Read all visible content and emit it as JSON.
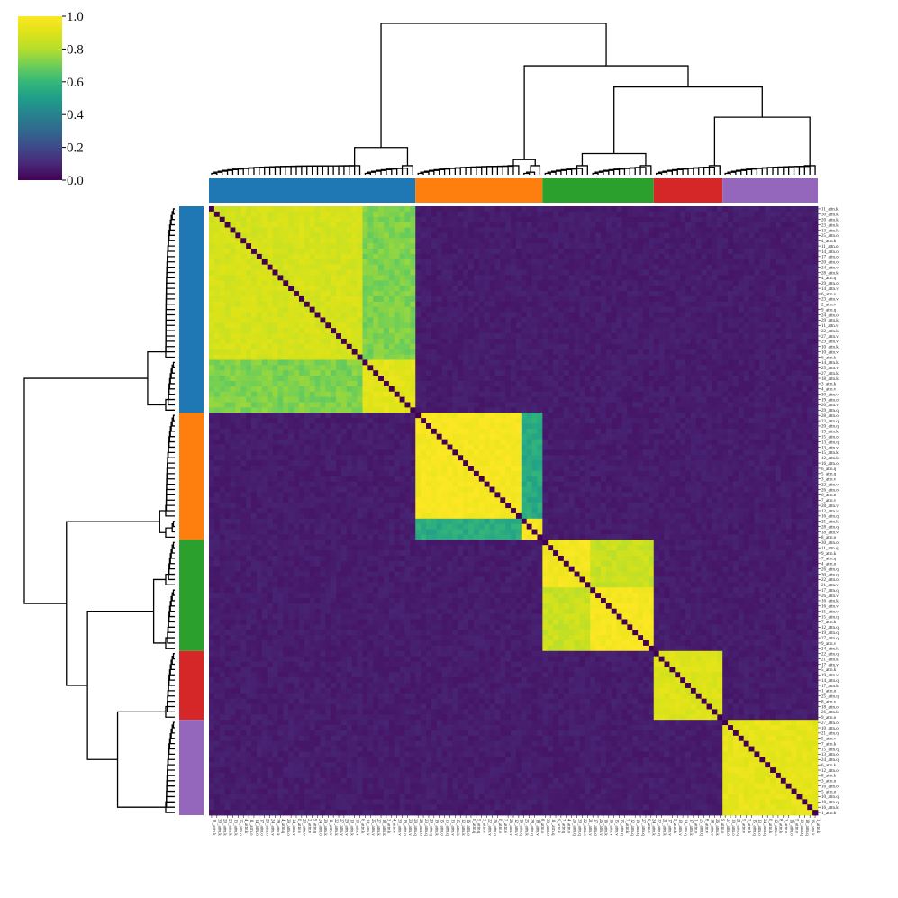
{
  "chart_data": {
    "type": "heatmap",
    "title": "",
    "xlabel": "",
    "ylabel": "",
    "colormap": "viridis",
    "clim": [
      0.0,
      1.0
    ],
    "colorbar": {
      "ticks": [
        "0.0",
        "0.2",
        "0.4",
        "0.6",
        "0.8",
        "1.0"
      ],
      "placement": "top-left"
    },
    "dendrograms": [
      "top",
      "left"
    ],
    "cluster_colors": [
      "#1f77b4",
      "#ff7f0e",
      "#2ca02c",
      "#d62728",
      "#9467bd"
    ],
    "groups": [
      {
        "cluster": 1,
        "count": 29,
        "block_value": 0.88
      },
      {
        "cluster": 1,
        "count": 10,
        "block_value": 0.92
      },
      {
        "cluster": 2,
        "count": 20,
        "block_value": 0.98
      },
      {
        "cluster": 2,
        "count": 4,
        "block_value": 0.98
      },
      {
        "cluster": 3,
        "count": 9,
        "block_value": 0.97
      },
      {
        "cluster": 3,
        "count": 12,
        "block_value": 0.98
      },
      {
        "cluster": 4,
        "count": 13,
        "block_value": 0.9
      },
      {
        "cluster": 5,
        "count": 18,
        "block_value": 0.93
      }
    ],
    "off_block_value": 0.05,
    "row_labels": [
      "11_attn.k",
      "30_attn.k",
      "20_attn.k",
      "23_attn.k",
      "13_attn.k",
      "25_attn.o",
      "4_attn.k",
      "11_attn.o",
      "14_attn.o",
      "17_attn.o",
      "20_attn.o",
      "24_attn.v",
      "28_attn.k",
      "4_attn.q",
      "29_attn.o",
      "14_attn.v",
      "6_attn.v",
      "23_attn.v",
      "2_attn.v",
      "9_attn.q",
      "24_attn.o",
      "29_attn.k",
      "11_attn.v",
      "22_attn.k",
      "27_attn.v",
      "29_attn.v",
      "10_attn.k",
      "10_attn.v",
      "6_attn.k",
      "14_attn.k",
      "25_attn.v",
      "27_attn.k",
      "18_attn.k",
      "3_attn.k",
      "4_attn.v",
      "30_attn.v",
      "19_attn.o",
      "20_attn.v",
      "29_attn.q",
      "28_attn.o",
      "23_attn.q",
      "20_attn.q",
      "19_attn.k",
      "15_attn.o",
      "13_attn.q",
      "13_attn.v",
      "15_attn.k",
      "12_attn.k",
      "16_attn.o",
      "6_attn.q",
      "5_attn.q",
      "3_attn.v",
      "22_attn.v",
      "26_attn.o",
      "6_attn.o",
      "7_attn.v",
      "28_attn.v",
      "12_attn.v",
      "16_attn.q",
      "25_attn.k",
      "28_attn.q",
      "18_attn.v",
      "8_attn.o",
      "30_attn.o",
      "11_attn.q",
      "9_attn.k",
      "7_attn.q",
      "4_attn.o",
      "26_attn.q",
      "30_attn.q",
      "22_attn.o",
      "21_attn.v",
      "17_attn.q",
      "26_attn.v",
      "16_attn.k",
      "16_attn.v",
      "15_attn.v",
      "15_attn.q",
      "7_attn.k",
      "12_attn.q",
      "19_attn.q",
      "27_attn.q",
      "9_attn.v",
      "24_attn.k",
      "22_attn.q",
      "21_attn.k",
      "17_attn.v",
      "5_attn.k",
      "19_attn.v",
      "14_attn.q",
      "17_attn.k",
      "1_attn.o",
      "25_attn.q",
      "8_attn.v",
      "18_attn.o",
      "26_attn.k",
      "9_attn.o",
      "27_attn.o",
      "10_attn.o",
      "21_attn.q",
      "5_attn.v",
      "7_attn.k",
      "15_attn.q",
      "13_attn.o",
      "24_attn.q",
      "6_attn.k",
      "12_attn.o",
      "8_attn.k",
      "3_attn.o",
      "16_attn.o",
      "5_attn.o",
      "10_attn.q",
      "18_attn.q",
      "16_attn.k",
      "1_attn.k"
    ],
    "col_labels": [
      "11_attn.k",
      "30_attn.k",
      "20_attn.k",
      "23_attn.k",
      "13_attn.k",
      "25_attn.o",
      "4_attn.k",
      "11_attn.o",
      "14_attn.o",
      "17_attn.o",
      "20_attn.o",
      "24_attn.v",
      "28_attn.k",
      "4_attn.q",
      "29_attn.o",
      "14_attn.v",
      "6_attn.v",
      "23_attn.v",
      "2_attn.v",
      "9_attn.q",
      "24_attn.o",
      "29_attn.k",
      "11_attn.v",
      "22_attn.k",
      "27_attn.v",
      "29_attn.v",
      "10_attn.k",
      "10_attn.v",
      "6_attn.k",
      "14_attn.k",
      "25_attn.v",
      "27_attn.k",
      "18_attn.k",
      "3_attn.k",
      "4_attn.v",
      "30_attn.v",
      "19_attn.o",
      "20_attn.v",
      "29_attn.q",
      "28_attn.o",
      "23_attn.q",
      "20_attn.q",
      "19_attn.k",
      "15_attn.o",
      "13_attn.q",
      "13_attn.v",
      "15_attn.k",
      "12_attn.k",
      "16_attn.o",
      "6_attn.q",
      "5_attn.q",
      "3_attn.v",
      "22_attn.v",
      "26_attn.o",
      "6_attn.o",
      "7_attn.v",
      "28_attn.v",
      "12_attn.v",
      "16_attn.q",
      "25_attn.k",
      "28_attn.q",
      "18_attn.v",
      "8_attn.o",
      "30_attn.o",
      "11_attn.q",
      "9_attn.k",
      "7_attn.q",
      "4_attn.o",
      "26_attn.q",
      "30_attn.q",
      "22_attn.o",
      "21_attn.v",
      "17_attn.q",
      "26_attn.v",
      "16_attn.k",
      "16_attn.v",
      "15_attn.v",
      "15_attn.q",
      "7_attn.k",
      "12_attn.q",
      "19_attn.q",
      "27_attn.q",
      "9_attn.v",
      "24_attn.k",
      "22_attn.q",
      "21_attn.k",
      "17_attn.v",
      "5_attn.k",
      "19_attn.v",
      "14_attn.q",
      "17_attn.k",
      "1_attn.o",
      "25_attn.q",
      "8_attn.v",
      "18_attn.o",
      "26_attn.k",
      "9_attn.o",
      "27_attn.o",
      "10_attn.o",
      "21_attn.q",
      "5_attn.v",
      "7_attn.k",
      "15_attn.q",
      "13_attn.o",
      "24_attn.q",
      "6_attn.k",
      "12_attn.o",
      "8_attn.k",
      "3_attn.o",
      "16_attn.o",
      "5_attn.o",
      "10_attn.q",
      "18_attn.q",
      "16_attn.k",
      "1_attn.k"
    ]
  }
}
